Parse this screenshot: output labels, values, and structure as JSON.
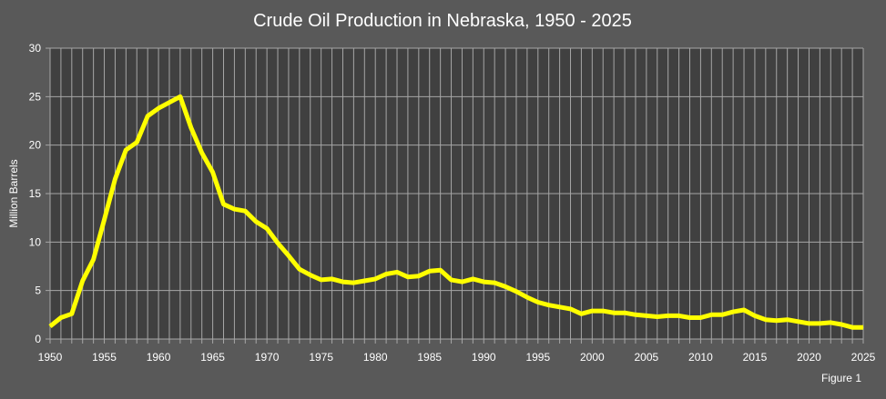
{
  "chart_data": {
    "type": "line",
    "title": "Crude Oil Production in Nebraska, 1950 - 2025",
    "ylabel": "Million Barrels",
    "xlabel": "",
    "caption": "Figure 1",
    "xlim": [
      1950,
      2025
    ],
    "ylim": [
      0,
      30
    ],
    "x_ticks": [
      1950,
      1955,
      1960,
      1965,
      1970,
      1975,
      1980,
      1985,
      1990,
      1995,
      2000,
      2005,
      2010,
      2015,
      2020,
      2025
    ],
    "y_ticks": [
      0,
      5,
      10,
      15,
      20,
      25,
      30
    ],
    "grid": true,
    "legend": "none",
    "colors": {
      "line": "#ffff00",
      "plot_bg": "#404040",
      "page_bg": "#595959",
      "grid": "#a6a6a6"
    },
    "x": [
      1950,
      1951,
      1952,
      1953,
      1954,
      1955,
      1956,
      1957,
      1958,
      1959,
      1960,
      1961,
      1962,
      1963,
      1964,
      1965,
      1966,
      1967,
      1968,
      1969,
      1970,
      1971,
      1972,
      1973,
      1974,
      1975,
      1976,
      1977,
      1978,
      1979,
      1980,
      1981,
      1982,
      1983,
      1984,
      1985,
      1986,
      1987,
      1988,
      1989,
      1990,
      1991,
      1992,
      1993,
      1994,
      1995,
      1996,
      1997,
      1998,
      1999,
      2000,
      2001,
      2002,
      2003,
      2004,
      2005,
      2006,
      2007,
      2008,
      2009,
      2010,
      2011,
      2012,
      2013,
      2014,
      2015,
      2016,
      2017,
      2018,
      2019,
      2020,
      2021,
      2022,
      2023,
      2024,
      2025
    ],
    "values": [
      1.3,
      2.2,
      2.6,
      6.0,
      8.2,
      12.3,
      16.5,
      19.5,
      20.3,
      23.0,
      23.8,
      24.4,
      25.0,
      21.8,
      19.2,
      17.2,
      13.9,
      13.4,
      13.2,
      12.1,
      11.4,
      9.9,
      8.6,
      7.2,
      6.6,
      6.1,
      6.2,
      5.9,
      5.8,
      6.0,
      6.2,
      6.7,
      6.9,
      6.4,
      6.5,
      7.0,
      7.1,
      6.1,
      5.9,
      6.2,
      5.9,
      5.8,
      5.4,
      4.9,
      4.3,
      3.8,
      3.5,
      3.3,
      3.1,
      2.6,
      2.9,
      2.9,
      2.7,
      2.7,
      2.5,
      2.4,
      2.3,
      2.4,
      2.4,
      2.2,
      2.2,
      2.5,
      2.5,
      2.8,
      3.0,
      2.4,
      2.0,
      1.9,
      2.0,
      1.8,
      1.6,
      1.6,
      1.7,
      1.5,
      1.2,
      1.2
    ]
  }
}
